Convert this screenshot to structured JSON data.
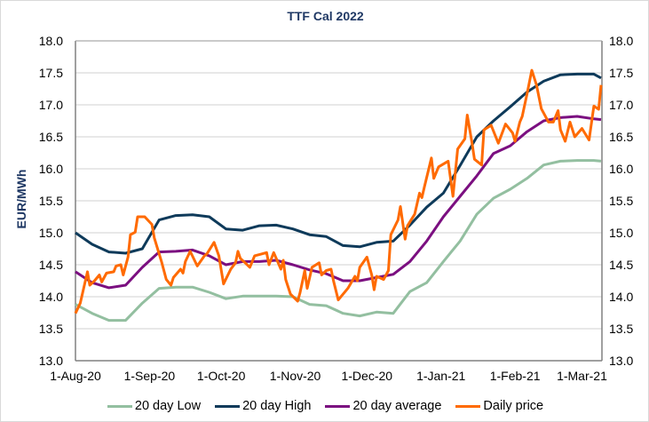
{
  "chart_data": {
    "type": "line",
    "title": "TTF Cal 2022",
    "ylabel": "EUR/MWh",
    "xlabel": "",
    "ylim": [
      13.0,
      18.0
    ],
    "y_ticks": [
      "13.0",
      "13.5",
      "14.0",
      "14.5",
      "15.0",
      "15.5",
      "16.0",
      "16.5",
      "17.0",
      "17.5",
      "18.0"
    ],
    "secondary_y_ticks": [
      "13.0",
      "13.5",
      "14.0",
      "14.5",
      "15.0",
      "15.5",
      "16.0",
      "16.5",
      "17.0",
      "17.5",
      "18.0"
    ],
    "xlim": [
      "2020-08-01",
      "2021-03-09"
    ],
    "x_ticks": [
      {
        "date": "2020-08-01",
        "label": "1-Aug-20"
      },
      {
        "date": "2020-09-01",
        "label": "1-Sep-20"
      },
      {
        "date": "2020-10-01",
        "label": "1-Oct-20"
      },
      {
        "date": "2020-11-01",
        "label": "1-Nov-20"
      },
      {
        "date": "2020-12-01",
        "label": "1-Dec-20"
      },
      {
        "date": "2021-01-01",
        "label": "1-Jan-21"
      },
      {
        "date": "2021-02-01",
        "label": "1-Feb-21"
      },
      {
        "date": "2021-03-01",
        "label": "1-Mar-21"
      }
    ],
    "grid": "horizontal",
    "legend_position": "bottom",
    "band_dates": [
      "2020-08-01",
      "2020-08-08",
      "2020-08-15",
      "2020-08-22",
      "2020-08-29",
      "2020-09-05",
      "2020-09-12",
      "2020-09-19",
      "2020-09-26",
      "2020-10-03",
      "2020-10-10",
      "2020-10-17",
      "2020-10-24",
      "2020-10-31",
      "2020-11-07",
      "2020-11-14",
      "2020-11-21",
      "2020-11-28",
      "2020-12-05",
      "2020-12-12",
      "2020-12-19",
      "2020-12-26",
      "2021-01-02",
      "2021-01-09",
      "2021-01-16",
      "2021-01-23",
      "2021-01-30",
      "2021-02-06",
      "2021-02-13",
      "2021-02-20",
      "2021-02-27",
      "2021-03-06",
      "2021-03-09"
    ],
    "series": [
      {
        "name": "20 day Low",
        "color": "#93bfa0",
        "x": "band_dates",
        "values": [
          13.88,
          13.74,
          13.63,
          13.63,
          13.9,
          14.13,
          14.15,
          14.15,
          14.07,
          13.97,
          14.01,
          14.01,
          14.01,
          14.0,
          13.88,
          13.86,
          13.74,
          13.7,
          13.76,
          13.74,
          14.08,
          14.22,
          14.55,
          14.87,
          15.29,
          15.54,
          15.68,
          15.85,
          16.06,
          16.12,
          16.13,
          16.13,
          16.12
        ]
      },
      {
        "name": "20 day High",
        "color": "#0e3a5a",
        "x": "band_dates",
        "values": [
          15.0,
          14.82,
          14.7,
          14.68,
          14.75,
          15.2,
          15.27,
          15.28,
          15.25,
          15.06,
          15.04,
          15.11,
          15.12,
          15.06,
          14.97,
          14.94,
          14.8,
          14.78,
          14.85,
          14.87,
          15.12,
          15.4,
          15.62,
          16.05,
          16.5,
          16.75,
          16.97,
          17.2,
          17.37,
          17.47,
          17.48,
          17.48,
          17.42
        ]
      },
      {
        "name": "20 day average",
        "color": "#7b0f80",
        "x": "band_dates",
        "values": [
          14.39,
          14.22,
          14.14,
          14.18,
          14.46,
          14.7,
          14.71,
          14.73,
          14.64,
          14.5,
          14.55,
          14.55,
          14.57,
          14.5,
          14.42,
          14.36,
          14.25,
          14.25,
          14.3,
          14.35,
          14.55,
          14.87,
          15.25,
          15.57,
          15.89,
          16.24,
          16.36,
          16.58,
          16.75,
          16.8,
          16.82,
          16.78,
          16.77
        ]
      },
      {
        "name": "Daily price",
        "color": "#ff6a00",
        "x": [
          "2020-08-01",
          "2020-08-03",
          "2020-08-06",
          "2020-08-07",
          "2020-08-09",
          "2020-08-11",
          "2020-08-12",
          "2020-08-14",
          "2020-08-17",
          "2020-08-18",
          "2020-08-20",
          "2020-08-21",
          "2020-08-23",
          "2020-08-24",
          "2020-08-26",
          "2020-08-27",
          "2020-08-30",
          "2020-09-02",
          "2020-09-03",
          "2020-09-06",
          "2020-09-08",
          "2020-09-10",
          "2020-09-11",
          "2020-09-14",
          "2020-09-15",
          "2020-09-16",
          "2020-09-18",
          "2020-09-21",
          "2020-09-24",
          "2020-09-25",
          "2020-09-28",
          "2020-09-30",
          "2020-10-02",
          "2020-10-05",
          "2020-10-07",
          "2020-10-08",
          "2020-10-09",
          "2020-10-11",
          "2020-10-13",
          "2020-10-15",
          "2020-10-18",
          "2020-10-20",
          "2020-10-21",
          "2020-10-23",
          "2020-10-26",
          "2020-10-27",
          "2020-10-28",
          "2020-10-30",
          "2020-11-02",
          "2020-11-03",
          "2020-11-05",
          "2020-11-06",
          "2020-11-08",
          "2020-11-11",
          "2020-11-12",
          "2020-11-14",
          "2020-11-16",
          "2020-11-17",
          "2020-11-19",
          "2020-11-23",
          "2020-11-26",
          "2020-11-27",
          "2020-11-28",
          "2020-12-01",
          "2020-12-03",
          "2020-12-04",
          "2020-12-05",
          "2020-12-08",
          "2020-12-10",
          "2020-12-11",
          "2020-12-14",
          "2020-12-15",
          "2020-12-17",
          "2020-12-18",
          "2020-12-21",
          "2020-12-23",
          "2020-12-24",
          "2020-12-25",
          "2020-12-28",
          "2020-12-29",
          "2020-12-31",
          "2021-01-04",
          "2021-01-06",
          "2021-01-08",
          "2021-01-11",
          "2021-01-12",
          "2021-01-14",
          "2021-01-15",
          "2021-01-18",
          "2021-01-19",
          "2021-01-22",
          "2021-01-25",
          "2021-01-28",
          "2021-01-31",
          "2021-02-01",
          "2021-02-03",
          "2021-02-04",
          "2021-02-06",
          "2021-02-08",
          "2021-02-10",
          "2021-02-12",
          "2021-02-15",
          "2021-02-17",
          "2021-02-19",
          "2021-02-20",
          "2021-02-22",
          "2021-02-24",
          "2021-02-26",
          "2021-03-01",
          "2021-03-04",
          "2021-03-06",
          "2021-03-08",
          "2021-03-09"
        ],
        "values": [
          13.74,
          13.9,
          14.39,
          14.18,
          14.25,
          14.34,
          14.23,
          14.37,
          14.39,
          14.48,
          14.5,
          14.34,
          14.62,
          14.97,
          15.01,
          15.25,
          15.25,
          15.13,
          14.92,
          14.55,
          14.27,
          14.18,
          14.3,
          14.43,
          14.37,
          14.55,
          14.71,
          14.48,
          14.64,
          14.67,
          14.85,
          14.64,
          14.2,
          14.43,
          14.53,
          14.71,
          14.6,
          14.53,
          14.46,
          14.64,
          14.67,
          14.69,
          14.5,
          14.69,
          14.43,
          14.57,
          14.27,
          14.04,
          13.93,
          14.06,
          14.41,
          14.13,
          14.46,
          14.53,
          14.34,
          14.41,
          14.43,
          14.25,
          13.95,
          14.13,
          14.32,
          14.25,
          14.46,
          14.62,
          14.34,
          14.11,
          14.32,
          14.27,
          14.41,
          14.97,
          15.2,
          15.41,
          14.9,
          15.11,
          15.29,
          15.62,
          15.55,
          15.71,
          16.17,
          15.85,
          16.03,
          16.12,
          15.57,
          16.31,
          16.47,
          16.84,
          16.4,
          16.15,
          16.06,
          16.61,
          16.68,
          16.4,
          16.7,
          16.56,
          16.43,
          16.73,
          16.82,
          17.17,
          17.54,
          17.31,
          16.94,
          16.73,
          16.73,
          16.91,
          16.61,
          16.43,
          16.73,
          16.5,
          16.63,
          16.45,
          16.98,
          16.93,
          17.31
        ]
      }
    ]
  }
}
